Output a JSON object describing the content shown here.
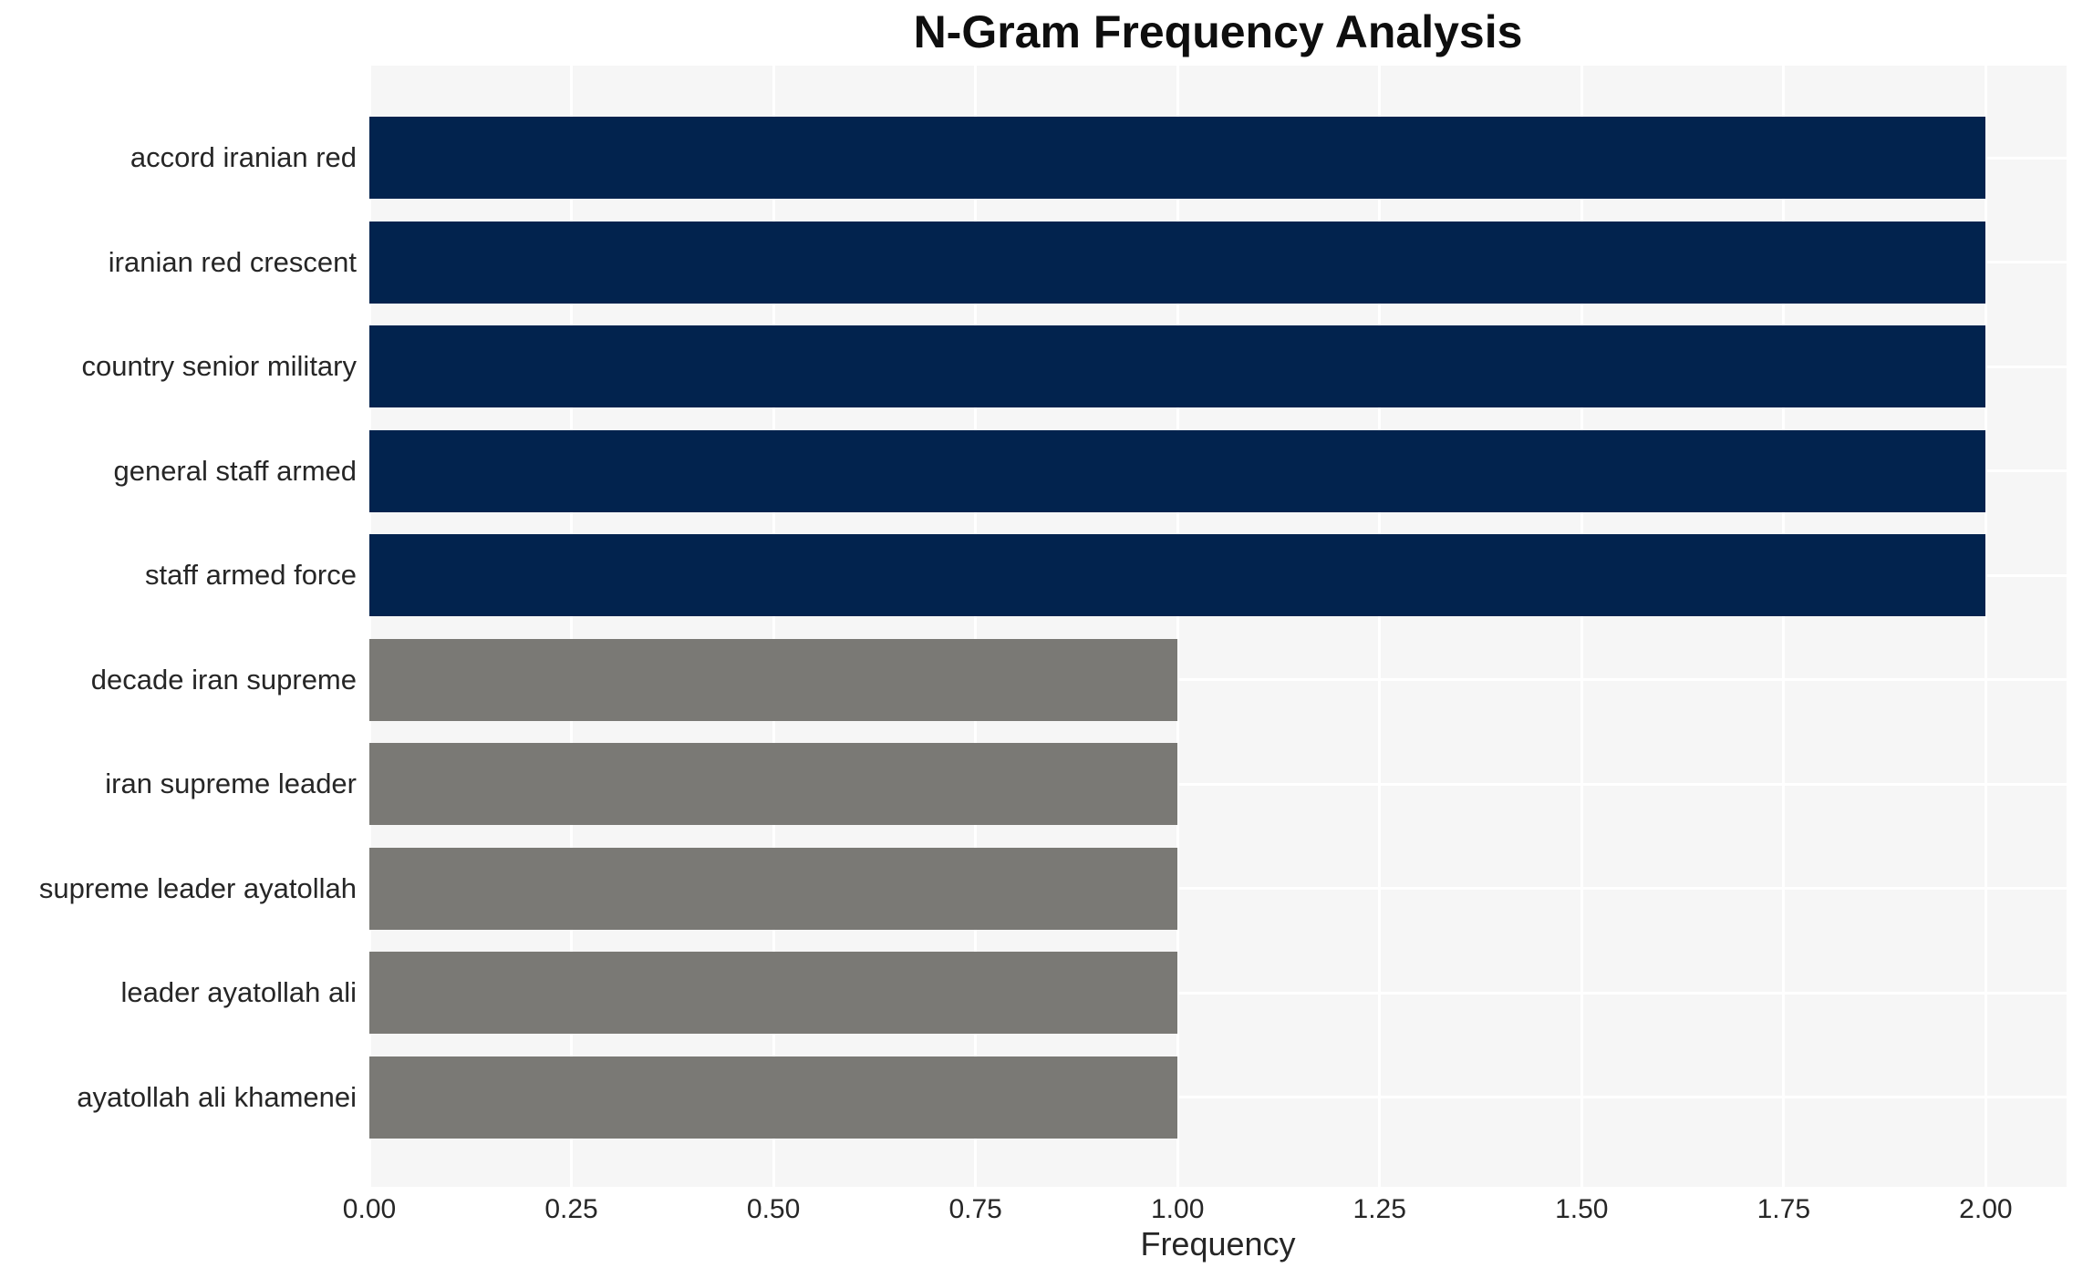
{
  "chart_data": {
    "type": "bar",
    "orientation": "horizontal",
    "title": "N-Gram Frequency Analysis",
    "xlabel": "Frequency",
    "ylabel": "",
    "categories": [
      "accord iranian red",
      "iranian red crescent",
      "country senior military",
      "general staff armed",
      "staff armed force",
      "decade iran supreme",
      "iran supreme leader",
      "supreme leader ayatollah",
      "leader ayatollah ali",
      "ayatollah ali khamenei"
    ],
    "values": [
      2,
      2,
      2,
      2,
      2,
      1,
      1,
      1,
      1,
      1
    ],
    "bar_colors": [
      "#02234e",
      "#02234e",
      "#02234e",
      "#02234e",
      "#02234e",
      "#7a7975",
      "#7a7975",
      "#7a7975",
      "#7a7975",
      "#7a7975"
    ],
    "xticks": [
      "0.00",
      "0.25",
      "0.50",
      "0.75",
      "1.00",
      "1.25",
      "1.50",
      "1.75",
      "2.00"
    ],
    "xtick_values": [
      0,
      0.25,
      0.5,
      0.75,
      1.0,
      1.25,
      1.5,
      1.75,
      2.0
    ],
    "xlim": [
      0,
      2.1
    ],
    "grid": true,
    "legend": "none",
    "colors": {
      "high_series": "#02234e",
      "low_series": "#7a7975",
      "plot_background": "#f6f6f6",
      "gridline": "#ffffff",
      "text": "#262626",
      "title_text": "#0e0e0e"
    }
  }
}
